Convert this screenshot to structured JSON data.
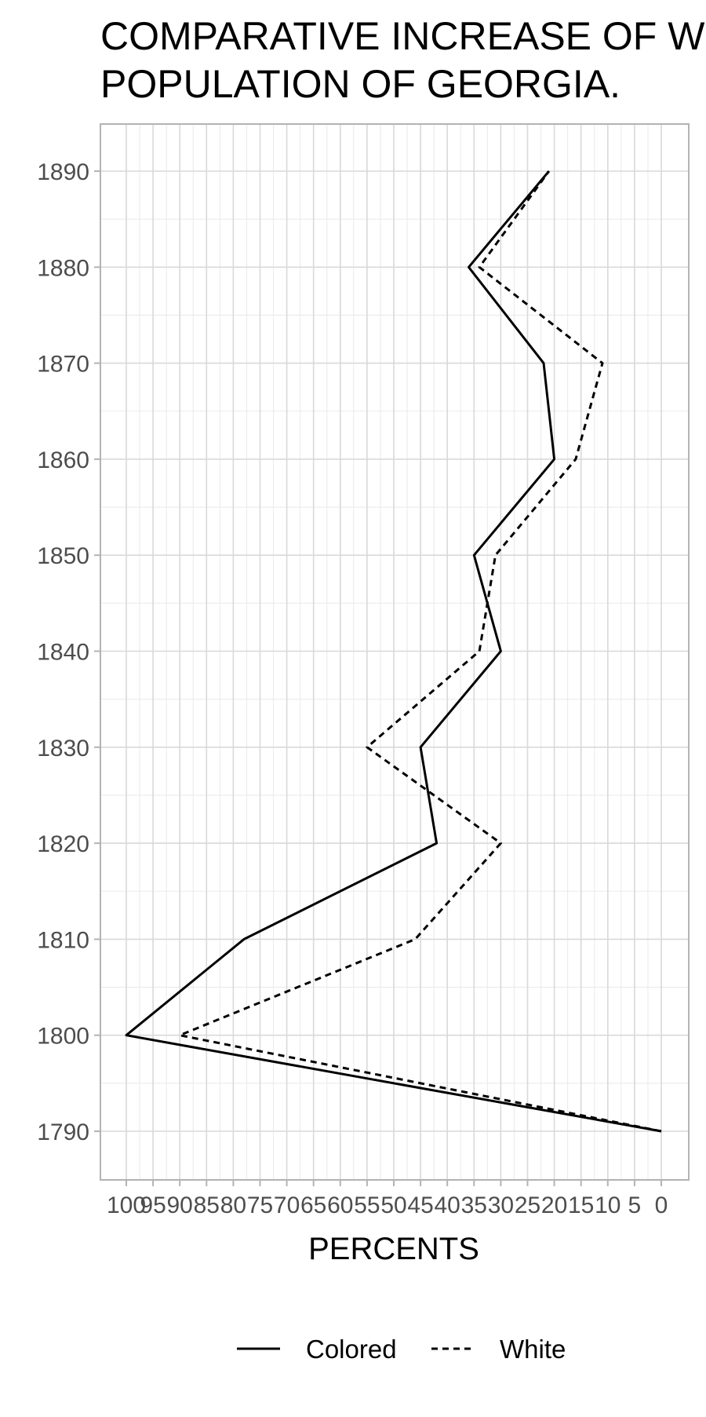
{
  "chart_data": {
    "type": "line",
    "title_lines": [
      "COMPARATIVE INCREASE OF WHITE AND COLORED",
      "POPULATION OF GEORGIA."
    ],
    "xlabel": "PERCENTS",
    "ylabel": "",
    "x_axis_reversed": true,
    "xlim": [
      0,
      105
    ],
    "ylim": [
      1785,
      1895
    ],
    "x_ticks": [
      100,
      95,
      90,
      85,
      80,
      75,
      70,
      65,
      60,
      55,
      50,
      45,
      40,
      35,
      30,
      25,
      20,
      15,
      10,
      5,
      0
    ],
    "x_tick_labels": [
      "100",
      "95",
      "90",
      "85",
      "80",
      "75",
      "70",
      "65",
      "60",
      "55",
      "50",
      "45",
      "40",
      "35",
      "30",
      "25",
      "20",
      "15",
      "10",
      "5",
      "0"
    ],
    "y_ticks": [
      1790,
      1800,
      1810,
      1820,
      1830,
      1840,
      1850,
      1860,
      1870,
      1880,
      1890
    ],
    "y_tick_labels": [
      "1790",
      "1800",
      "1810",
      "1820",
      "1830",
      "1840",
      "1850",
      "1860",
      "1870",
      "1880",
      "1890"
    ],
    "grid": true,
    "legend_position": "bottom",
    "series": [
      {
        "name": "Colored",
        "line_style": "solid",
        "color": "#000000",
        "points": [
          {
            "year": 1790,
            "percent": 0
          },
          {
            "year": 1800,
            "percent": 100
          },
          {
            "year": 1810,
            "percent": 78
          },
          {
            "year": 1820,
            "percent": 42
          },
          {
            "year": 1830,
            "percent": 45
          },
          {
            "year": 1840,
            "percent": 30
          },
          {
            "year": 1850,
            "percent": 35
          },
          {
            "year": 1860,
            "percent": 20
          },
          {
            "year": 1870,
            "percent": 22
          },
          {
            "year": 1880,
            "percent": 36
          },
          {
            "year": 1890,
            "percent": 21
          }
        ]
      },
      {
        "name": "White",
        "line_style": "dashed",
        "color": "#000000",
        "points": [
          {
            "year": 1790,
            "percent": 0
          },
          {
            "year": 1800,
            "percent": 90
          },
          {
            "year": 1810,
            "percent": 46
          },
          {
            "year": 1820,
            "percent": 30
          },
          {
            "year": 1830,
            "percent": 55
          },
          {
            "year": 1840,
            "percent": 34
          },
          {
            "year": 1850,
            "percent": 31
          },
          {
            "year": 1860,
            "percent": 16
          },
          {
            "year": 1870,
            "percent": 11
          },
          {
            "year": 1880,
            "percent": 34
          },
          {
            "year": 1890,
            "percent": 21
          }
        ]
      }
    ]
  }
}
